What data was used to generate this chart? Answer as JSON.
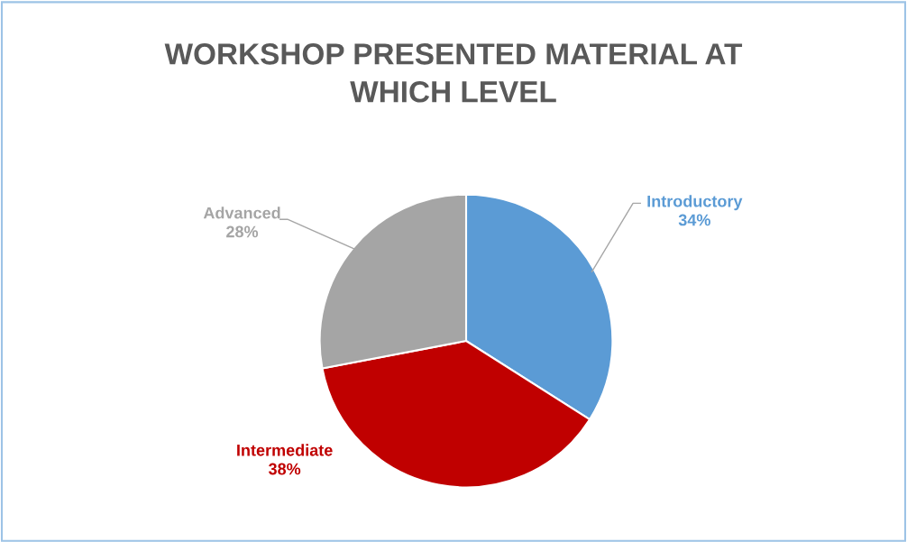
{
  "chart_data": {
    "type": "pie",
    "title": "WORKSHOP PRESENTED MATERIAL AT\nWHICH LEVEL",
    "categories": [
      "Introductory",
      "Intermediate",
      "Advanced"
    ],
    "values": [
      34,
      38,
      28
    ],
    "colors": [
      "#5b9bd5",
      "#c00000",
      "#a5a5a5"
    ],
    "value_labels": [
      "34%",
      "38%",
      "28%"
    ],
    "legend": false
  }
}
